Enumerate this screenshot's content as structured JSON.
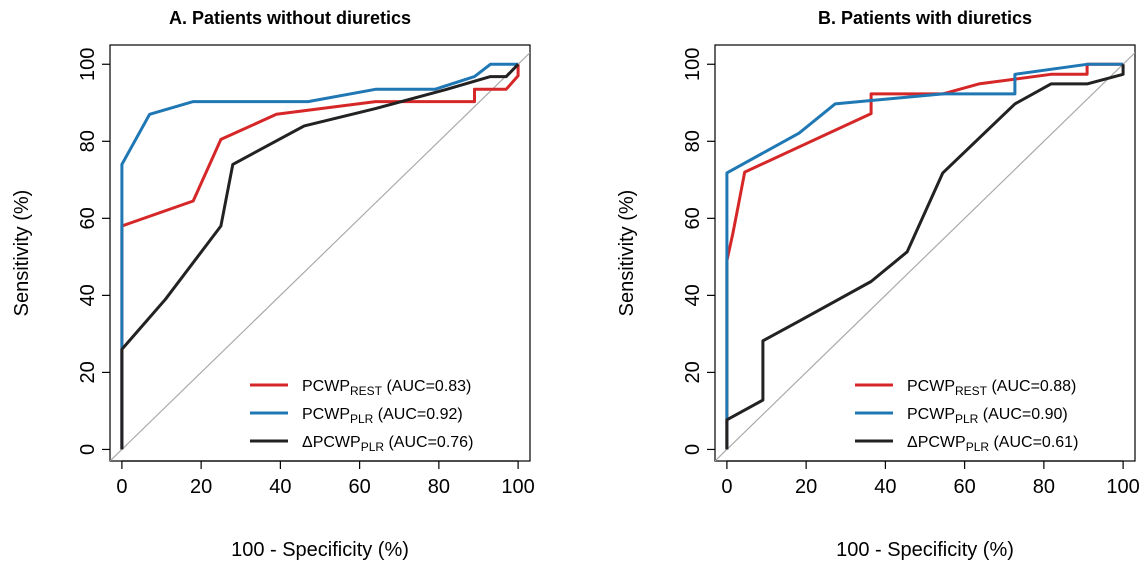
{
  "chart_data": [
    {
      "type": "line",
      "title": "A. Patients without diuretics",
      "xlabel": "100 - Specificity (%)",
      "ylabel": "Sensitivity (%)",
      "xlim": [
        -3,
        103
      ],
      "ylim": [
        -3,
        105
      ],
      "xticks": [
        0,
        20,
        40,
        60,
        80,
        100
      ],
      "yticks": [
        0,
        20,
        40,
        60,
        80,
        100
      ],
      "grid": false,
      "legend_position": "bottom-right",
      "reference_line": "diagonal",
      "series": [
        {
          "name_main": "PCWP",
          "name_sub": "REST",
          "auc_text": " (AUC=0.83)",
          "color": "#d62728",
          "points": [
            [
              0,
              0
            ],
            [
              0,
              58
            ],
            [
              18,
              64.5
            ],
            [
              25,
              80.5
            ],
            [
              39,
              87
            ],
            [
              64,
              90.3
            ],
            [
              89,
              90.3
            ],
            [
              89,
              93.5
            ],
            [
              97,
              93.5
            ],
            [
              100,
              97
            ],
            [
              100,
              100
            ]
          ]
        },
        {
          "name_main": "PCWP",
          "name_sub": "PLR",
          "auc_text": " (AUC=0.92)",
          "color": "#1f77b4",
          "points": [
            [
              0,
              0
            ],
            [
              0,
              74
            ],
            [
              7,
              87
            ],
            [
              18,
              90.3
            ],
            [
              47,
              90.3
            ],
            [
              64,
              93.5
            ],
            [
              79,
              93.5
            ],
            [
              89,
              96.8
            ],
            [
              93,
              100
            ],
            [
              100,
              100
            ]
          ]
        },
        {
          "name_main": "ΔPCWP",
          "name_sub": "PLR",
          "auc_text": " (AUC=0.76)",
          "color": "#222222",
          "points": [
            [
              0,
              0
            ],
            [
              0,
              26
            ],
            [
              11,
              39
            ],
            [
              25,
              58
            ],
            [
              28,
              74
            ],
            [
              46,
              84
            ],
            [
              64,
              88.5
            ],
            [
              82,
              93.5
            ],
            [
              93,
              96.8
            ],
            [
              97,
              96.8
            ],
            [
              100,
              100
            ]
          ]
        }
      ]
    },
    {
      "type": "line",
      "title": "B. Patients with diuretics",
      "xlabel": "100 - Specificity (%)",
      "ylabel": "Sensitivity (%)",
      "xlim": [
        -3,
        103
      ],
      "ylim": [
        -3,
        105
      ],
      "xticks": [
        0,
        20,
        40,
        60,
        80,
        100
      ],
      "yticks": [
        0,
        20,
        40,
        60,
        80,
        100
      ],
      "grid": false,
      "legend_position": "bottom-right",
      "reference_line": "diagonal",
      "series": [
        {
          "name_main": "PCWP",
          "name_sub": "REST",
          "auc_text": " (AUC=0.88)",
          "color": "#d62728",
          "points": [
            [
              0,
              0
            ],
            [
              0,
              49
            ],
            [
              1.5,
              56
            ],
            [
              3,
              64
            ],
            [
              4.5,
              72
            ],
            [
              36.4,
              87.2
            ],
            [
              36.4,
              92.3
            ],
            [
              54.5,
              92.3
            ],
            [
              63.6,
              94.9
            ],
            [
              81.8,
              97.4
            ],
            [
              90.9,
              97.4
            ],
            [
              90.9,
              100
            ],
            [
              100,
              100
            ]
          ]
        },
        {
          "name_main": "PCWP",
          "name_sub": "PLR",
          "auc_text": " (AUC=0.90)",
          "color": "#1f77b4",
          "points": [
            [
              0,
              0
            ],
            [
              0,
              71.8
            ],
            [
              18.2,
              82.1
            ],
            [
              27.3,
              89.7
            ],
            [
              54.5,
              92.3
            ],
            [
              72.7,
              92.3
            ],
            [
              72.7,
              97.4
            ],
            [
              90.9,
              100
            ],
            [
              100,
              100
            ]
          ]
        },
        {
          "name_main": "ΔPCWP",
          "name_sub": "PLR",
          "auc_text": " (AUC=0.61)",
          "color": "#222222",
          "points": [
            [
              0,
              0
            ],
            [
              0,
              7.7
            ],
            [
              9.1,
              12.8
            ],
            [
              9.1,
              28.2
            ],
            [
              18.2,
              33.3
            ],
            [
              36.4,
              43.6
            ],
            [
              45.5,
              51.3
            ],
            [
              54.5,
              71.8
            ],
            [
              72.7,
              89.7
            ],
            [
              81.8,
              94.9
            ],
            [
              90.9,
              94.9
            ],
            [
              100,
              97.4
            ],
            [
              100,
              100
            ]
          ]
        }
      ]
    }
  ]
}
